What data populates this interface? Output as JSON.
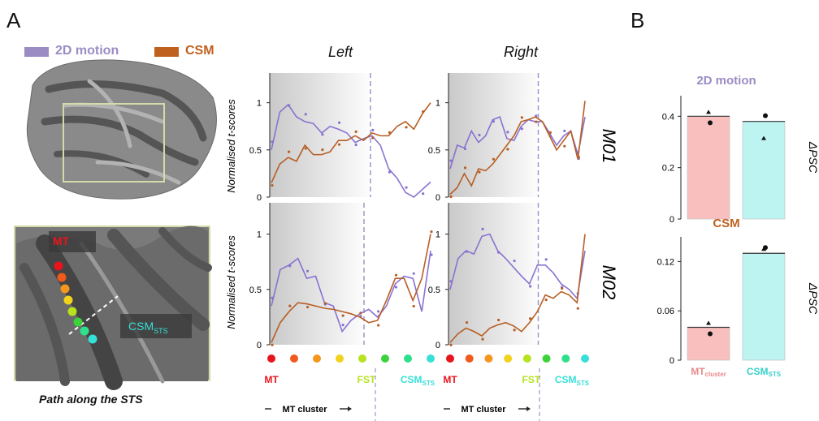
{
  "figure": {
    "panel_a_label": "A",
    "panel_b_label": "B",
    "legend": [
      {
        "label": "2D motion",
        "color": "#9b8cc4"
      },
      {
        "label": "CSM",
        "color": "#c0601e"
      }
    ],
    "brain_labels": {
      "mt": "MT",
      "csm": "CSM",
      "csm_sub": "STS"
    },
    "brain_caption": "Path along the STS",
    "column_titles": [
      "Left",
      "Right"
    ],
    "row_labels": [
      "M01",
      "M02"
    ],
    "ylabel": "Normalised t-scores",
    "roi_labels": {
      "mt": "MT",
      "fst": "FST",
      "csm": "CSM",
      "csm_sub": "STS"
    },
    "cluster_label": "MT cluster",
    "path_dot_colors": [
      "#e8141c",
      "#f05a1c",
      "#f5961e",
      "#f3d21e",
      "#b6e21e",
      "#3cd23c",
      "#2ee08c",
      "#36e0d8"
    ],
    "colors": {
      "motion": "#8a72d0",
      "csm": "#b75e24",
      "motion_bar": "#f9bfbf",
      "csm_bar": "#bdf4f2",
      "panel_b_motion_title": "#9b8cc4",
      "panel_b_csm_title": "#c0601e"
    }
  },
  "chart_data": [
    {
      "type": "line",
      "panel": "A-M01-Left",
      "ylim": [
        0,
        1.1
      ],
      "yticks": [
        "0",
        "0.5",
        "1"
      ],
      "series": [
        {
          "name": "2D motion",
          "values": [
            0.5,
            0.9,
            0.98,
            0.85,
            0.8,
            0.78,
            0.68,
            0.75,
            0.72,
            0.68,
            0.58,
            0.62,
            0.65,
            0.55,
            0.3,
            0.2,
            0.05,
            0.0,
            0.08,
            0.16
          ]
        },
        {
          "name": "CSM",
          "values": [
            0.15,
            0.35,
            0.42,
            0.38,
            0.55,
            0.45,
            0.45,
            0.48,
            0.6,
            0.6,
            0.65,
            0.6,
            0.68,
            0.65,
            0.65,
            0.75,
            0.8,
            0.72,
            0.88,
            1.0
          ]
        }
      ]
    },
    {
      "type": "line",
      "panel": "A-M01-Right",
      "ylim": [
        0,
        1.1
      ],
      "yticks": [
        "0",
        "0.5",
        "1"
      ],
      "series": [
        {
          "name": "2D motion",
          "values": [
            0.3,
            0.55,
            0.52,
            0.7,
            0.58,
            0.65,
            0.82,
            0.85,
            0.62,
            0.6,
            0.75,
            0.82,
            0.8,
            0.8,
            0.68,
            0.55,
            0.65,
            0.7,
            0.45,
            0.85
          ]
        },
        {
          "name": "CSM",
          "values": [
            0.03,
            0.1,
            0.25,
            0.12,
            0.3,
            0.28,
            0.35,
            0.45,
            0.55,
            0.65,
            0.8,
            0.82,
            0.85,
            0.8,
            0.65,
            0.5,
            0.6,
            0.7,
            0.4,
            1.02
          ]
        }
      ]
    },
    {
      "type": "line",
      "panel": "A-M02-Left",
      "ylim": [
        0,
        1.1
      ],
      "yticks": [
        "0",
        "0.5",
        "1"
      ],
      "series": [
        {
          "name": "2D motion",
          "values": [
            0.35,
            0.68,
            0.72,
            0.78,
            0.6,
            0.62,
            0.38,
            0.35,
            0.12,
            0.22,
            0.28,
            0.32,
            0.25,
            0.35,
            0.55,
            0.62,
            0.6,
            0.3,
            0.85
          ]
        },
        {
          "name": "CSM",
          "values": [
            0.02,
            0.2,
            0.3,
            0.38,
            0.37,
            0.35,
            0.33,
            0.32,
            0.3,
            0.28,
            0.25,
            0.2,
            0.22,
            0.4,
            0.6,
            0.6,
            0.4,
            0.6,
            1.0
          ]
        }
      ]
    },
    {
      "type": "line",
      "panel": "A-M02-Right",
      "ylim": [
        0,
        1.1
      ],
      "yticks": [
        "0",
        "0.5",
        "1"
      ],
      "series": [
        {
          "name": "2D motion",
          "values": [
            0.5,
            0.78,
            0.85,
            0.82,
            0.98,
            1.0,
            0.85,
            0.78,
            0.7,
            0.62,
            0.55,
            0.72,
            0.72,
            0.65,
            0.55,
            0.5,
            0.42,
            0.85
          ]
        },
        {
          "name": "CSM",
          "values": [
            0.02,
            0.1,
            0.15,
            0.12,
            0.08,
            0.15,
            0.18,
            0.2,
            0.17,
            0.12,
            0.2,
            0.3,
            0.45,
            0.42,
            0.48,
            0.45,
            0.38,
            1.0
          ]
        }
      ]
    },
    {
      "type": "bar",
      "panel": "B-2D-motion",
      "title": "2D motion",
      "ylabel": "ΔPSC",
      "categories": [
        "MT cluster",
        "CSM STS"
      ],
      "values": [
        0.4,
        0.38
      ],
      "ylim": [
        0,
        0.48
      ],
      "yticks": [
        "0",
        "0.2",
        "0.4"
      ]
    },
    {
      "type": "bar",
      "panel": "B-CSM",
      "title": "CSM",
      "ylabel": "ΔPSC",
      "categories": [
        "MT cluster",
        "CSM STS"
      ],
      "values": [
        0.04,
        0.13
      ],
      "ylim": [
        0,
        0.15
      ],
      "yticks": [
        "0",
        "0.06",
        "0.12"
      ],
      "category_labels": [
        {
          "main": "MT",
          "sub": "cluster"
        },
        {
          "main": "CSM",
          "sub": "STS"
        }
      ]
    }
  ]
}
